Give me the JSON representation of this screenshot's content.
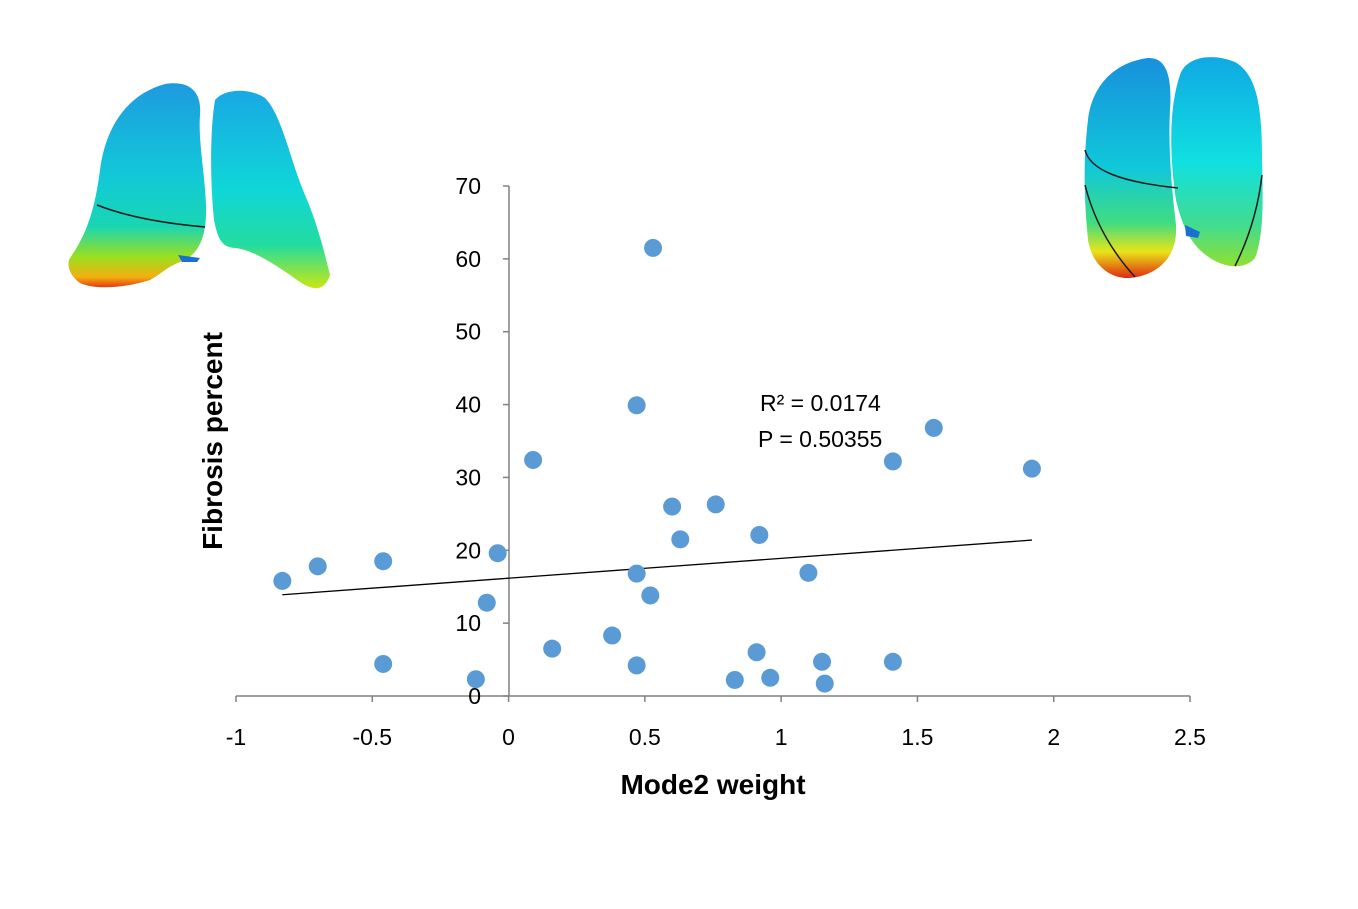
{
  "chart_data": {
    "type": "scatter",
    "xlabel": "Mode2 weight",
    "ylabel": "Fibrosis percent",
    "xlim": [
      -1,
      2.5
    ],
    "ylim": [
      0,
      70
    ],
    "x_ticks": [
      "-1",
      "-0.5",
      "0",
      "0.5",
      "1",
      "1.5",
      "2",
      "2.5"
    ],
    "y_ticks": [
      "0",
      "10",
      "20",
      "30",
      "40",
      "50",
      "60",
      "70"
    ],
    "grid": false,
    "marker_color": "#5B9BD5",
    "series": [
      {
        "points": [
          {
            "x": -0.83,
            "y": 15.8
          },
          {
            "x": -0.7,
            "y": 17.8
          },
          {
            "x": -0.46,
            "y": 18.5
          },
          {
            "x": -0.46,
            "y": 4.4
          },
          {
            "x": -0.12,
            "y": 2.3
          },
          {
            "x": -0.08,
            "y": 12.8
          },
          {
            "x": -0.04,
            "y": 19.6
          },
          {
            "x": 0.09,
            "y": 32.4
          },
          {
            "x": 0.16,
            "y": 6.5
          },
          {
            "x": 0.38,
            "y": 8.3
          },
          {
            "x": 0.47,
            "y": 39.9
          },
          {
            "x": 0.47,
            "y": 16.8
          },
          {
            "x": 0.47,
            "y": 4.2
          },
          {
            "x": 0.52,
            "y": 13.8
          },
          {
            "x": 0.53,
            "y": 61.5
          },
          {
            "x": 0.6,
            "y": 26.0
          },
          {
            "x": 0.63,
            "y": 21.5
          },
          {
            "x": 0.76,
            "y": 26.3
          },
          {
            "x": 0.83,
            "y": 2.2
          },
          {
            "x": 0.91,
            "y": 6.0
          },
          {
            "x": 0.92,
            "y": 22.1
          },
          {
            "x": 0.96,
            "y": 2.5
          },
          {
            "x": 1.1,
            "y": 16.9
          },
          {
            "x": 1.15,
            "y": 4.7
          },
          {
            "x": 1.16,
            "y": 1.7
          },
          {
            "x": 1.41,
            "y": 32.2
          },
          {
            "x": 1.41,
            "y": 4.7
          },
          {
            "x": 1.56,
            "y": 36.8
          },
          {
            "x": 1.92,
            "y": 31.2
          }
        ]
      }
    ],
    "trendline": {
      "x": [
        -0.83,
        1.92
      ],
      "y": [
        13.9,
        21.4
      ]
    },
    "annotations": [
      "R² = 0.0174",
      "P = 0.50355"
    ]
  }
}
